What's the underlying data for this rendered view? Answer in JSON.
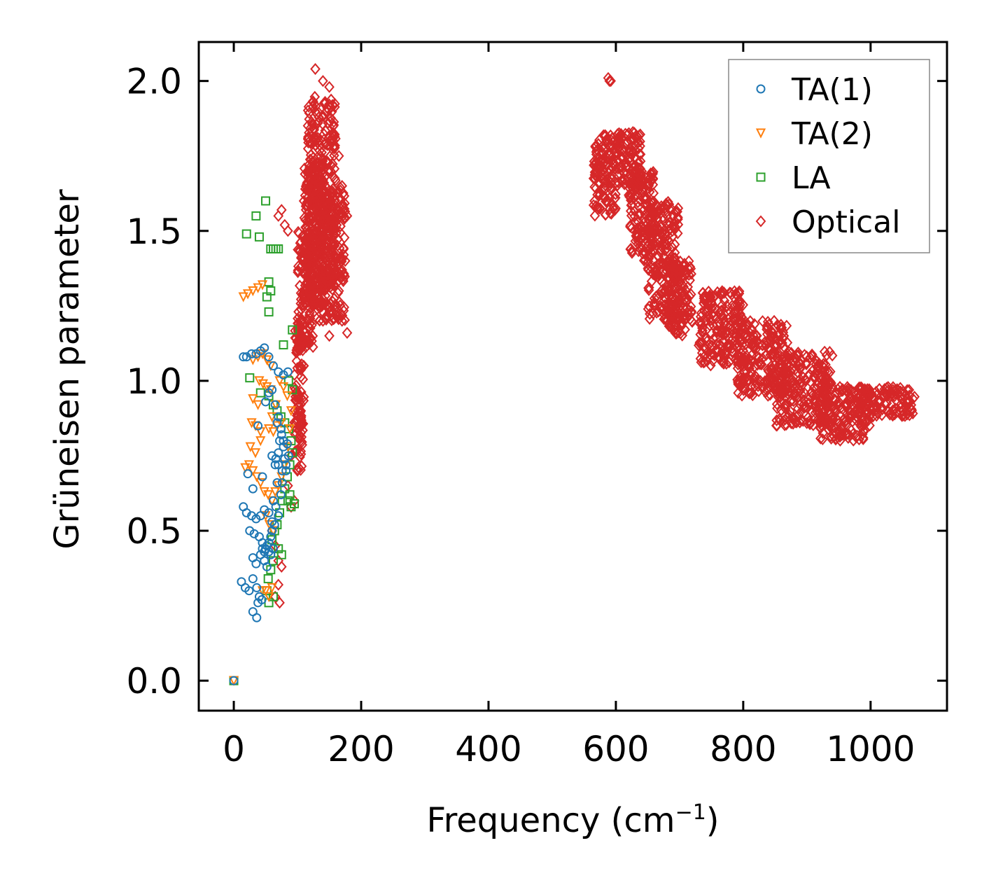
{
  "chart_data": {
    "type": "scatter",
    "xlabel": "Frequency (cm",
    "xlabel_sup": "−1",
    "xlabel_close": ")",
    "ylabel": "Grüneisen parameter",
    "xlim": [
      -55,
      1120
    ],
    "ylim": [
      -0.1,
      2.13
    ],
    "xticks": [
      0,
      200,
      400,
      600,
      800,
      1000
    ],
    "xtick_labels": [
      "0",
      "200",
      "400",
      "600",
      "800",
      "1000"
    ],
    "yticks": [
      0.0,
      0.5,
      1.0,
      1.5,
      2.0
    ],
    "ytick_labels": [
      "0.0",
      "0.5",
      "1.0",
      "1.5",
      "2.0"
    ],
    "legend_position": "top-right",
    "series": [
      {
        "name": "TA(1)",
        "marker": "circle",
        "color": "#1f77b4",
        "points": [
          [
            0,
            0
          ],
          [
            15,
            1.08
          ],
          [
            20,
            1.08
          ],
          [
            28,
            1.09
          ],
          [
            35,
            1.09
          ],
          [
            42,
            1.1
          ],
          [
            48,
            1.11
          ],
          [
            55,
            1.08
          ],
          [
            62,
            1.05
          ],
          [
            70,
            1.03
          ],
          [
            78,
            1.02
          ],
          [
            85,
            1.03
          ],
          [
            22,
            0.69
          ],
          [
            30,
            0.64
          ],
          [
            45,
            0.68
          ],
          [
            50,
            0.93
          ],
          [
            55,
            0.96
          ],
          [
            60,
            0.97
          ],
          [
            65,
            0.92
          ],
          [
            70,
            0.88
          ],
          [
            38,
            0.85
          ],
          [
            15,
            0.58
          ],
          [
            20,
            0.56
          ],
          [
            28,
            0.55
          ],
          [
            35,
            0.54
          ],
          [
            42,
            0.55
          ],
          [
            48,
            0.57
          ],
          [
            55,
            0.56
          ],
          [
            60,
            0.53
          ],
          [
            25,
            0.5
          ],
          [
            32,
            0.49
          ],
          [
            40,
            0.48
          ],
          [
            45,
            0.46
          ],
          [
            50,
            0.44
          ],
          [
            55,
            0.43
          ],
          [
            30,
            0.41
          ],
          [
            35,
            0.39
          ],
          [
            42,
            0.42
          ],
          [
            48,
            0.4
          ],
          [
            52,
            0.38
          ],
          [
            12,
            0.33
          ],
          [
            18,
            0.31
          ],
          [
            24,
            0.3
          ],
          [
            30,
            0.34
          ],
          [
            36,
            0.31
          ],
          [
            40,
            0.28
          ],
          [
            44,
            0.27
          ],
          [
            38,
            0.26
          ],
          [
            30,
            0.23
          ],
          [
            36,
            0.21
          ],
          [
            60,
            0.75
          ],
          [
            65,
            0.72
          ],
          [
            70,
            0.76
          ],
          [
            72,
            0.8
          ],
          [
            75,
            0.82
          ],
          [
            78,
            0.78
          ],
          [
            80,
            0.74
          ],
          [
            82,
            0.7
          ],
          [
            76,
            0.66
          ],
          [
            74,
            0.62
          ],
          [
            68,
            0.66
          ],
          [
            62,
            0.6
          ],
          [
            66,
            0.58
          ],
          [
            70,
            0.55
          ],
          [
            64,
            0.52
          ],
          [
            60,
            0.5
          ],
          [
            58,
            0.48
          ],
          [
            55,
            0.46
          ],
          [
            52,
            0.45
          ],
          [
            48,
            0.43
          ],
          [
            45,
            0.44
          ],
          [
            58,
            0.42
          ],
          [
            62,
            0.44
          ],
          [
            78,
            0.8
          ],
          [
            84,
            0.79
          ],
          [
            86,
            0.75
          ],
          [
            82,
            0.72
          ],
          [
            76,
            0.7
          ],
          [
            70,
            0.72
          ],
          [
            66,
            0.74
          ],
          [
            74,
            0.84
          ],
          [
            68,
            0.86
          ]
        ]
      },
      {
        "name": "TA(2)",
        "marker": "triangle",
        "color": "#ff7f0e",
        "points": [
          [
            0,
            0
          ],
          [
            15,
            1.28
          ],
          [
            22,
            1.29
          ],
          [
            30,
            1.3
          ],
          [
            38,
            1.31
          ],
          [
            45,
            1.32
          ],
          [
            30,
            1.07
          ],
          [
            38,
            1.08
          ],
          [
            45,
            1.09
          ],
          [
            52,
            1.07
          ],
          [
            58,
            1.05
          ],
          [
            40,
            1.0
          ],
          [
            46,
            0.99
          ],
          [
            52,
            0.98
          ],
          [
            58,
            0.97
          ],
          [
            30,
            0.94
          ],
          [
            38,
            0.92
          ],
          [
            28,
            0.86
          ],
          [
            34,
            0.85
          ],
          [
            42,
            0.83
          ],
          [
            26,
            0.78
          ],
          [
            34,
            0.76
          ],
          [
            42,
            0.8
          ],
          [
            18,
            0.71
          ],
          [
            24,
            0.72
          ],
          [
            30,
            0.7
          ],
          [
            36,
            0.68
          ],
          [
            42,
            0.66
          ],
          [
            48,
            0.63
          ],
          [
            54,
            0.62
          ],
          [
            60,
            0.6
          ],
          [
            65,
            0.63
          ],
          [
            70,
            0.65
          ],
          [
            75,
            0.68
          ],
          [
            80,
            0.72
          ],
          [
            85,
            0.78
          ],
          [
            88,
            0.84
          ],
          [
            90,
            0.9
          ],
          [
            84,
            0.95
          ],
          [
            78,
            0.98
          ],
          [
            72,
            1.0
          ],
          [
            66,
            0.92
          ],
          [
            60,
            0.88
          ],
          [
            55,
            0.84
          ],
          [
            62,
            0.83
          ],
          [
            68,
            0.85
          ],
          [
            74,
            0.86
          ],
          [
            50,
            0.55
          ],
          [
            56,
            0.52
          ],
          [
            62,
            0.5
          ],
          [
            45,
            0.3
          ],
          [
            50,
            0.3
          ],
          [
            55,
            0.28
          ],
          [
            60,
            0.31
          ]
        ]
      },
      {
        "name": "LA",
        "marker": "square",
        "color": "#2ca02c",
        "points": [
          [
            0,
            0
          ],
          [
            50,
            1.6
          ],
          [
            35,
            1.55
          ],
          [
            20,
            1.49
          ],
          [
            40,
            1.48
          ],
          [
            58,
            1.44
          ],
          [
            62,
            1.44
          ],
          [
            66,
            1.44
          ],
          [
            70,
            1.44
          ],
          [
            55,
            1.33
          ],
          [
            58,
            1.3
          ],
          [
            52,
            1.28
          ],
          [
            55,
            1.23
          ],
          [
            92,
            1.17
          ],
          [
            78,
            1.12
          ],
          [
            25,
            1.01
          ],
          [
            42,
            0.96
          ],
          [
            55,
            0.95
          ],
          [
            62,
            0.92
          ],
          [
            68,
            0.9
          ],
          [
            74,
            0.88
          ],
          [
            80,
            0.86
          ],
          [
            86,
            0.84
          ],
          [
            90,
            0.8
          ],
          [
            92,
            0.76
          ],
          [
            88,
            0.72
          ],
          [
            84,
            0.68
          ],
          [
            80,
            0.64
          ],
          [
            76,
            0.6
          ],
          [
            72,
            0.56
          ],
          [
            68,
            0.52
          ],
          [
            64,
            0.5
          ],
          [
            60,
            0.47
          ],
          [
            70,
            0.44
          ],
          [
            75,
            0.42
          ],
          [
            62,
            0.4
          ],
          [
            58,
            0.37
          ],
          [
            54,
            0.34
          ],
          [
            52,
            0.3
          ],
          [
            55,
            0.26
          ],
          [
            62,
            0.28
          ],
          [
            85,
            0.6
          ],
          [
            90,
            0.58
          ],
          [
            95,
            0.59
          ],
          [
            88,
            0.62
          ],
          [
            92,
            0.97
          ],
          [
            86,
            1.0
          ]
        ]
      },
      {
        "name": "Optical",
        "marker": "diamond",
        "color": "#d62728",
        "clusters": [
          {
            "points": [
              [
                75,
                1.57
              ],
              [
                70,
                1.55
              ],
              [
                80,
                1.52
              ],
              [
                85,
                1.5
              ],
              [
                110,
                1.6
              ],
              [
                120,
                1.7
              ],
              [
                125,
                1.8
              ],
              [
                128,
                2.04
              ],
              [
                140,
                2.0
              ],
              [
                150,
                1.98
              ],
              [
                155,
                1.92
              ],
              [
                148,
                1.86
              ],
              [
                165,
                1.75
              ],
              [
                170,
                1.65
              ],
              [
                178,
                1.55
              ],
              [
                175,
                1.4
              ],
              [
                165,
                1.3
              ],
              [
                170,
                1.2
              ],
              [
                178,
                1.16
              ],
              [
                150,
                1.15
              ],
              [
                140,
                1.2
              ],
              [
                125,
                1.25
              ],
              [
                115,
                1.15
              ],
              [
                110,
                1.05
              ],
              [
                100,
                0.95
              ],
              [
                95,
                0.85
              ],
              [
                90,
                0.75
              ],
              [
                85,
                0.65
              ],
              [
                90,
                0.58
              ],
              [
                95,
                0.6
              ],
              [
                100,
                0.7
              ],
              [
                105,
                0.8
              ],
              [
                60,
                0.5
              ],
              [
                65,
                0.45
              ],
              [
                70,
                0.4
              ],
              [
                75,
                0.38
              ],
              [
                70,
                0.32
              ],
              [
                65,
                0.28
              ],
              [
                72,
                0.26
              ]
            ],
            "bands": [
              {
                "x": [
                  95,
                  110
                ],
                "y": [
                  0.7,
                  1.2
                ]
              },
              {
                "x": [
                  100,
                  125
                ],
                "y": [
                  1.1,
                  1.5
                ]
              },
              {
                "x": [
                  110,
                  140
                ],
                "y": [
                  1.25,
                  1.75
                ]
              },
              {
                "x": [
                  115,
                  160
                ],
                "y": [
                  1.3,
                  1.95
                ]
              },
              {
                "x": [
                  130,
                  175
                ],
                "y": [
                  1.2,
                  1.65
                ]
              }
            ]
          },
          {
            "points": [
              [
                588,
                2.01
              ],
              [
                592,
                2.0
              ],
              [
                590,
                2.0
              ]
            ],
            "bands": [
              {
                "x": [
                  565,
                  600
                ],
                "y": [
                  1.55,
                  1.82
                ]
              },
              {
                "x": [
                  600,
                  640
                ],
                "y": [
                  1.65,
                  1.83
                ]
              },
              {
                "x": [
                  620,
                  660
                ],
                "y": [
                  1.4,
                  1.7
                ]
              },
              {
                "x": [
                  650,
                  700
                ],
                "y": [
                  1.2,
                  1.6
                ]
              },
              {
                "x": [
                  680,
                  720
                ],
                "y": [
                  1.15,
                  1.4
                ]
              },
              {
                "x": [
                  730,
                  800
                ],
                "y": [
                  1.05,
                  1.3
                ]
              },
              {
                "x": [
                  790,
                  870
                ],
                "y": [
                  0.95,
                  1.2
                ]
              },
              {
                "x": [
                  850,
                  940
                ],
                "y": [
                  0.85,
                  1.1
                ]
              },
              {
                "x": [
                  920,
                  1000
                ],
                "y": [
                  0.8,
                  0.98
                ]
              },
              {
                "x": [
                  980,
                  1070
                ],
                "y": [
                  0.88,
                  0.98
                ]
              }
            ]
          }
        ]
      }
    ]
  }
}
